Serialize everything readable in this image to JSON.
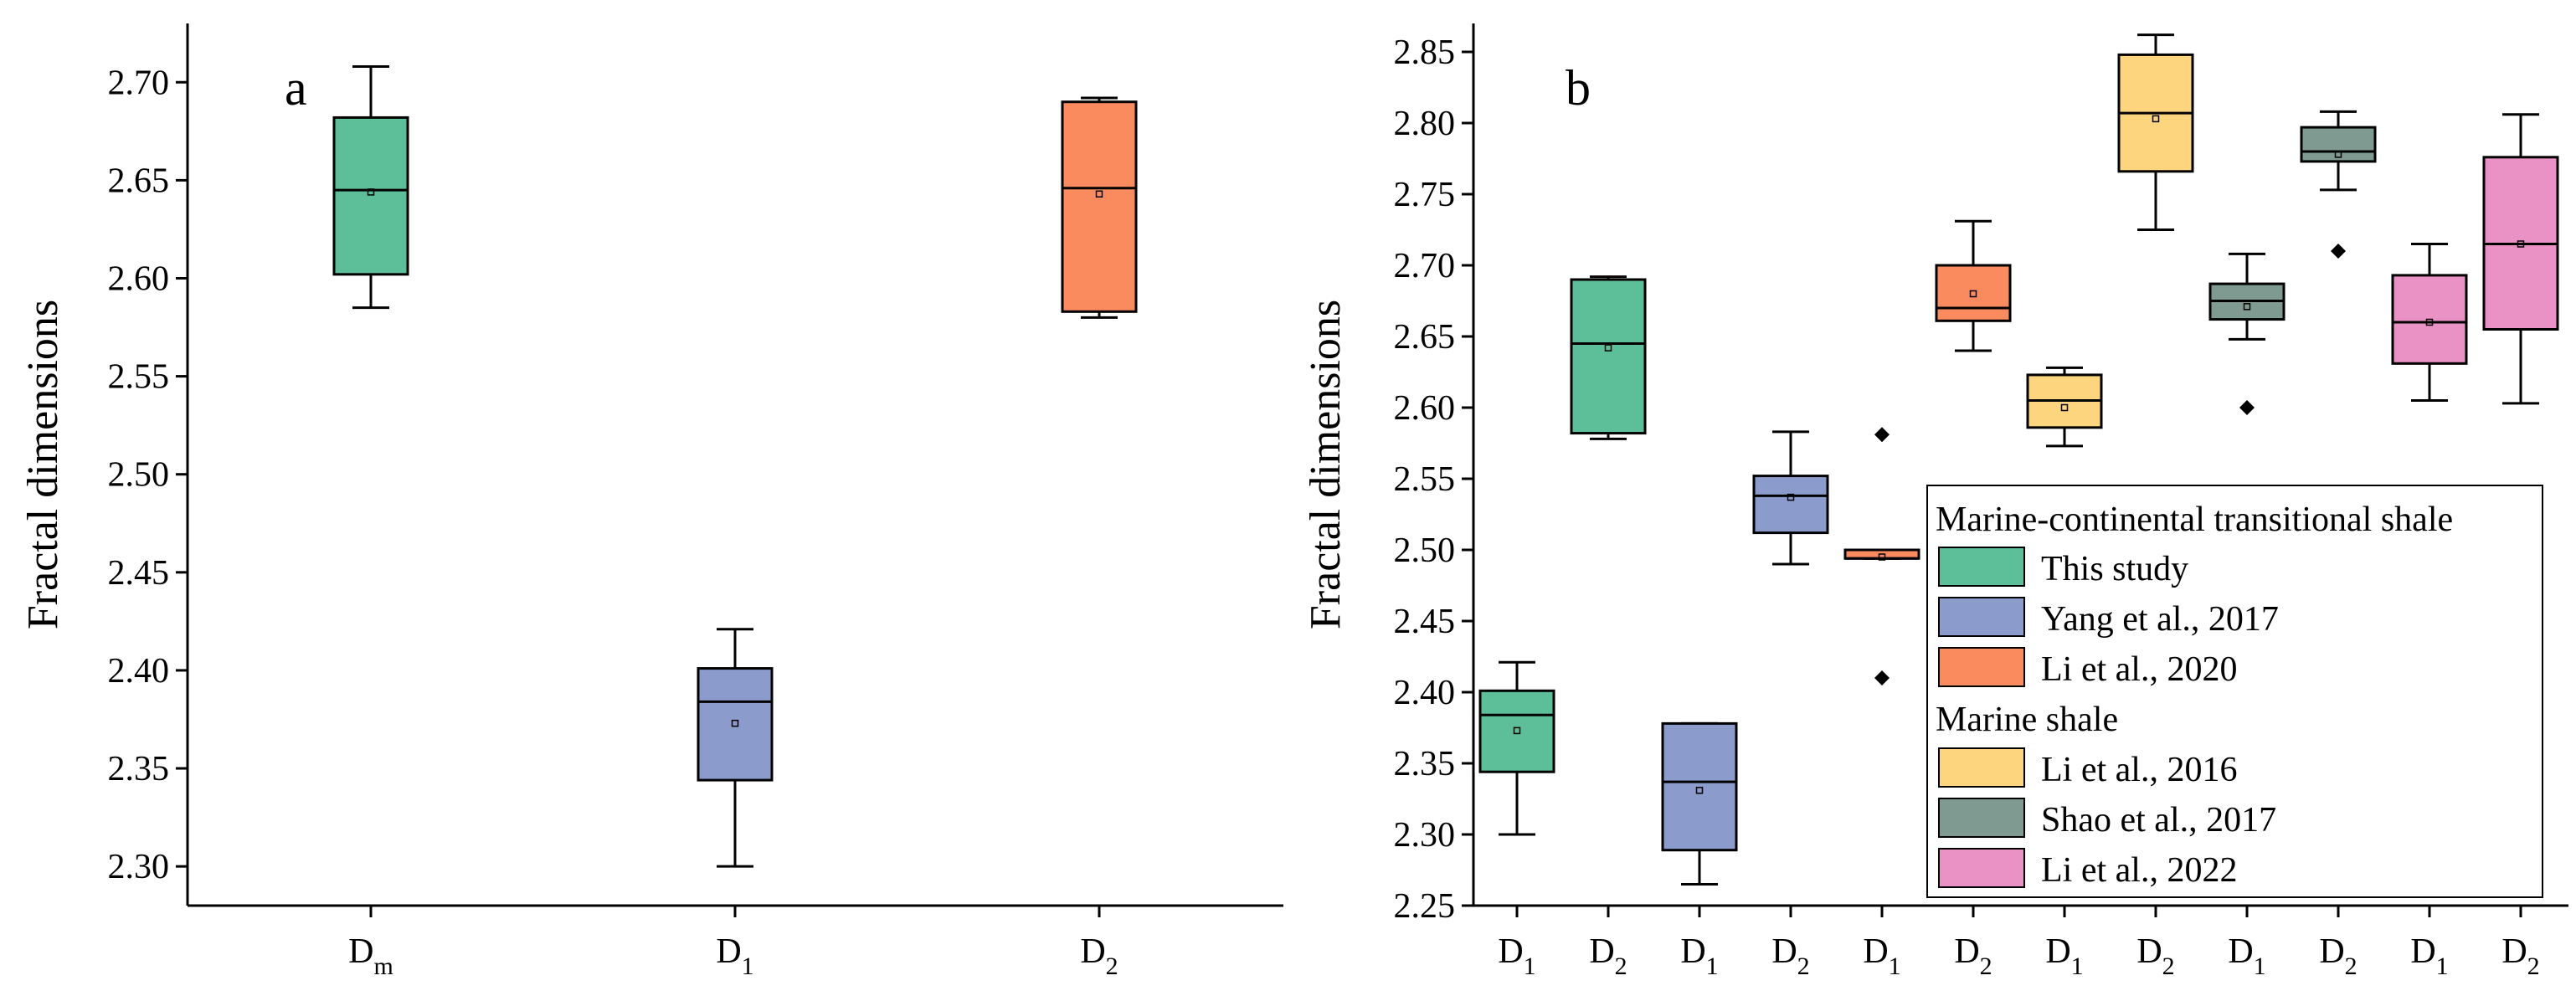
{
  "chart_data": [
    {
      "panel": "a",
      "type": "box",
      "title": "",
      "xlabel": "",
      "ylabel": "Fractal dimensions",
      "ylim": [
        2.28,
        2.73
      ],
      "yticks": [
        "2.30",
        "2.35",
        "2.40",
        "2.45",
        "2.50",
        "2.55",
        "2.60",
        "2.65",
        "2.70"
      ],
      "categories": [
        {
          "base": "D",
          "sub": "m"
        },
        {
          "base": "D",
          "sub": "1"
        },
        {
          "base": "D",
          "sub": "2"
        }
      ],
      "boxes": [
        {
          "category": 0,
          "color": "#5cbf9a",
          "whisker_low": 2.585,
          "q1": 2.602,
          "median": 2.645,
          "mean": 2.644,
          "q3": 2.682,
          "whisker_high": 2.708,
          "outliers": []
        },
        {
          "category": 1,
          "color": "#8b9bcc",
          "whisker_low": 2.3,
          "q1": 2.344,
          "median": 2.384,
          "mean": 2.373,
          "q3": 2.401,
          "whisker_high": 2.421,
          "outliers": []
        },
        {
          "category": 2,
          "color": "#f98b5e",
          "whisker_low": 2.58,
          "q1": 2.583,
          "median": 2.646,
          "mean": 2.643,
          "q3": 2.69,
          "whisker_high": 2.692,
          "outliers": []
        }
      ]
    },
    {
      "panel": "b",
      "type": "box",
      "title": "",
      "xlabel": "",
      "ylabel": "Fractal dimensions",
      "ylim": [
        2.25,
        2.87
      ],
      "yticks": [
        "2.25",
        "2.30",
        "2.35",
        "2.40",
        "2.45",
        "2.50",
        "2.55",
        "2.60",
        "2.65",
        "2.70",
        "2.75",
        "2.80",
        "2.85"
      ],
      "categories": [
        {
          "base": "D",
          "sub": "1"
        },
        {
          "base": "D",
          "sub": "2"
        },
        {
          "base": "D",
          "sub": "1"
        },
        {
          "base": "D",
          "sub": "2"
        },
        {
          "base": "D",
          "sub": "1"
        },
        {
          "base": "D",
          "sub": "2"
        },
        {
          "base": "D",
          "sub": "1"
        },
        {
          "base": "D",
          "sub": "2"
        },
        {
          "base": "D",
          "sub": "1"
        },
        {
          "base": "D",
          "sub": "2"
        },
        {
          "base": "D",
          "sub": "1"
        },
        {
          "base": "D",
          "sub": "2"
        }
      ],
      "boxes": [
        {
          "category": 0,
          "series": "This study",
          "color": "#5cbf9a",
          "whisker_low": 2.3,
          "q1": 2.344,
          "median": 2.384,
          "mean": 2.373,
          "q3": 2.401,
          "whisker_high": 2.421,
          "outliers": []
        },
        {
          "category": 1,
          "series": "This study",
          "color": "#5cbf9a",
          "whisker_low": 2.578,
          "q1": 2.582,
          "median": 2.645,
          "mean": 2.642,
          "q3": 2.69,
          "whisker_high": 2.692,
          "outliers": []
        },
        {
          "category": 2,
          "series": "Yang et al., 2017",
          "color": "#8b9bcc",
          "whisker_low": 2.265,
          "q1": 2.289,
          "median": 2.337,
          "mean": 2.331,
          "q3": 2.378,
          "whisker_high": 2.378,
          "outliers": []
        },
        {
          "category": 3,
          "series": "Yang et al., 2017",
          "color": "#8b9bcc",
          "whisker_low": 2.49,
          "q1": 2.512,
          "median": 2.538,
          "mean": 2.537,
          "q3": 2.552,
          "whisker_high": 2.583,
          "outliers": []
        },
        {
          "category": 4,
          "series": "Li et al., 2020",
          "color": "#f98b5e",
          "whisker_low": 2.494,
          "q1": 2.494,
          "median": 2.494,
          "mean": 2.495,
          "q3": 2.5,
          "whisker_high": 2.5,
          "outliers": [
            2.581,
            2.41
          ]
        },
        {
          "category": 5,
          "series": "Li et al., 2020",
          "color": "#f98b5e",
          "whisker_low": 2.64,
          "q1": 2.661,
          "median": 2.67,
          "mean": 2.68,
          "q3": 2.7,
          "whisker_high": 2.731,
          "outliers": []
        },
        {
          "category": 6,
          "series": "Li et al., 2016",
          "color": "#fdd57e",
          "whisker_low": 2.573,
          "q1": 2.586,
          "median": 2.605,
          "mean": 2.6,
          "q3": 2.623,
          "whisker_high": 2.628,
          "outliers": []
        },
        {
          "category": 7,
          "series": "Li et al., 2016",
          "color": "#fdd57e",
          "whisker_low": 2.725,
          "q1": 2.766,
          "median": 2.807,
          "mean": 2.803,
          "q3": 2.848,
          "whisker_high": 2.862,
          "outliers": []
        },
        {
          "category": 8,
          "series": "Shao et al., 2017",
          "color": "#7f9b91",
          "whisker_low": 2.648,
          "q1": 2.662,
          "median": 2.675,
          "mean": 2.671,
          "q3": 2.687,
          "whisker_high": 2.708,
          "outliers": [
            2.6
          ]
        },
        {
          "category": 9,
          "series": "Shao et al., 2017",
          "color": "#7f9b91",
          "whisker_low": 2.753,
          "q1": 2.773,
          "median": 2.78,
          "mean": 2.778,
          "q3": 2.797,
          "whisker_high": 2.808,
          "outliers": [
            2.71
          ]
        },
        {
          "category": 10,
          "series": "Li et al., 2022",
          "color": "#ea91c6",
          "whisker_low": 2.605,
          "q1": 2.631,
          "median": 2.66,
          "mean": 2.66,
          "q3": 2.693,
          "whisker_high": 2.715,
          "outliers": []
        },
        {
          "category": 11,
          "series": "Li et al., 2022",
          "color": "#ea91c6",
          "whisker_low": 2.603,
          "q1": 2.655,
          "median": 2.715,
          "mean": 2.715,
          "q3": 2.776,
          "whisker_high": 2.806,
          "outliers": []
        }
      ],
      "legend": {
        "placement": "bottom-right",
        "groups": [
          {
            "header": "Marine-continental transitional shale",
            "entries": [
              {
                "label": "This study",
                "color": "#5cbf9a"
              },
              {
                "label": "Yang et al., 2017",
                "color": "#8b9bcc"
              },
              {
                "label": "Li et al., 2020",
                "color": "#f98b5e"
              }
            ]
          },
          {
            "header": "Marine shale",
            "entries": [
              {
                "label": "Li et al., 2016",
                "color": "#fdd57e"
              },
              {
                "label": "Shao et al., 2017",
                "color": "#7f9b91"
              },
              {
                "label": "Li et al., 2022",
                "color": "#ea91c6"
              }
            ]
          }
        ]
      }
    }
  ]
}
